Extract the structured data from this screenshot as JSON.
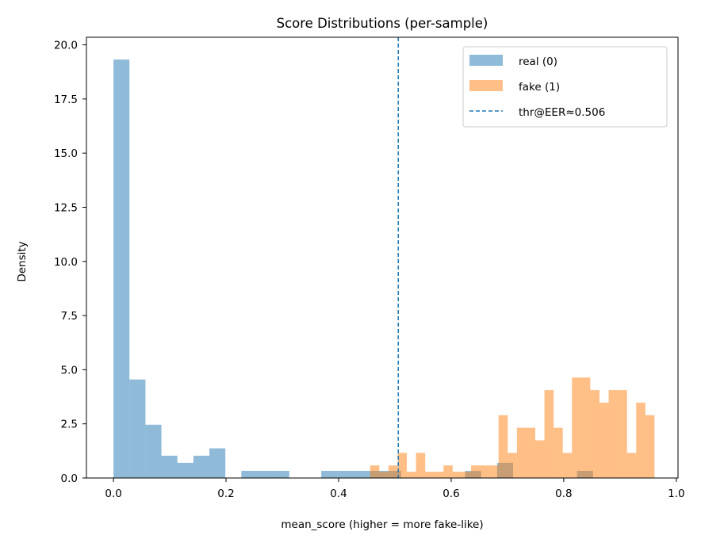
{
  "chart_data": {
    "type": "bar",
    "title": "Score Distributions (per-sample)",
    "xlabel": "mean_score (higher = more fake-like)",
    "ylabel": "Density",
    "xlim": [
      -0.048,
      1.003
    ],
    "ylim": [
      0,
      20.35
    ],
    "xticks": [
      0.0,
      0.2,
      0.4,
      0.6,
      0.8,
      1.0
    ],
    "xtick_labels": [
      "0.0",
      "0.2",
      "0.4",
      "0.6",
      "0.8",
      "1.0"
    ],
    "yticks": [
      0.0,
      2.5,
      5.0,
      7.5,
      10.0,
      12.5,
      15.0,
      17.5,
      20.0
    ],
    "ytick_labels": [
      "0.0",
      "2.5",
      "5.0",
      "7.5",
      "10.0",
      "12.5",
      "15.0",
      "17.5",
      "20.0"
    ],
    "grid": false,
    "legend_position": "top-right",
    "series": [
      {
        "name": "real (0)",
        "color": "#1f77b4",
        "alpha": 0.5,
        "bins": [
          [
            0.0,
            0.0284,
            19.32
          ],
          [
            0.0284,
            0.0568,
            4.55
          ],
          [
            0.0568,
            0.0852,
            2.46
          ],
          [
            0.0852,
            0.1136,
            1.03
          ],
          [
            0.1136,
            0.142,
            0.7
          ],
          [
            0.142,
            0.1704,
            1.03
          ],
          [
            0.1704,
            0.1988,
            1.37
          ],
          [
            0.2272,
            0.2556,
            0.33
          ],
          [
            0.2556,
            0.284,
            0.33
          ],
          [
            0.284,
            0.3124,
            0.33
          ],
          [
            0.3692,
            0.3976,
            0.33
          ],
          [
            0.3976,
            0.426,
            0.33
          ],
          [
            0.426,
            0.4544,
            0.33
          ],
          [
            0.4544,
            0.4828,
            0.33
          ],
          [
            0.4828,
            0.5112,
            0.33
          ],
          [
            0.6248,
            0.6532,
            0.33
          ],
          [
            0.6816,
            0.71,
            0.7
          ],
          [
            0.8236,
            0.852,
            0.33
          ]
        ]
      },
      {
        "name": "fake (1)",
        "color": "#ff7f0e",
        "alpha": 0.5,
        "bins": [
          [
            0.456,
            0.4723,
            0.58
          ],
          [
            0.4723,
            0.4886,
            0.29
          ],
          [
            0.4886,
            0.5049,
            0.58
          ],
          [
            0.5049,
            0.5212,
            1.16
          ],
          [
            0.5212,
            0.5375,
            0.29
          ],
          [
            0.5375,
            0.5538,
            1.16
          ],
          [
            0.5538,
            0.5701,
            0.29
          ],
          [
            0.5701,
            0.5864,
            0.29
          ],
          [
            0.5864,
            0.6027,
            0.58
          ],
          [
            0.6027,
            0.619,
            0.29
          ],
          [
            0.619,
            0.6353,
            0.29
          ],
          [
            0.6353,
            0.6516,
            0.58
          ],
          [
            0.6516,
            0.6679,
            0.58
          ],
          [
            0.6679,
            0.6842,
            0.58
          ],
          [
            0.6842,
            0.7005,
            2.9
          ],
          [
            0.7005,
            0.7168,
            1.16
          ],
          [
            0.7168,
            0.7331,
            2.32
          ],
          [
            0.7331,
            0.7494,
            2.32
          ],
          [
            0.7494,
            0.7657,
            1.74
          ],
          [
            0.7657,
            0.782,
            4.06
          ],
          [
            0.782,
            0.7983,
            2.32
          ],
          [
            0.7983,
            0.8146,
            1.16
          ],
          [
            0.8146,
            0.8309,
            4.64
          ],
          [
            0.8309,
            0.8472,
            4.64
          ],
          [
            0.8472,
            0.8635,
            4.06
          ],
          [
            0.8635,
            0.8798,
            3.48
          ],
          [
            0.8798,
            0.8961,
            4.06
          ],
          [
            0.8961,
            0.9124,
            4.06
          ],
          [
            0.9124,
            0.9287,
            1.16
          ],
          [
            0.9287,
            0.945,
            3.48
          ],
          [
            0.945,
            0.9613,
            2.9
          ]
        ]
      }
    ],
    "threshold": {
      "name": "thr@EER≈0.506",
      "x": 0.506,
      "color": "#1f77b4",
      "style": "dashed"
    }
  }
}
